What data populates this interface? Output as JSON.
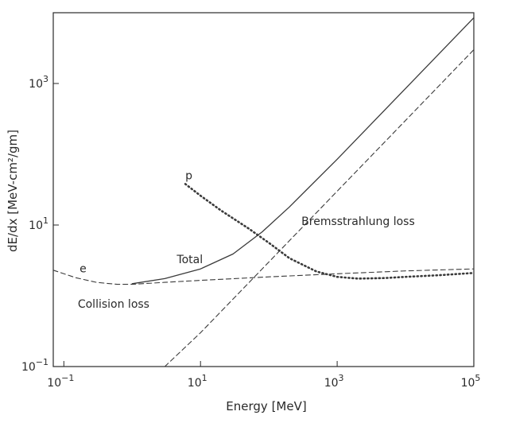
{
  "chart_data": {
    "type": "line",
    "title": "",
    "xlabel": "Energy [MeV]",
    "ylabel": "dE/dx [MeV-cm²/gm]",
    "xscale": "log",
    "yscale": "log",
    "xlim": [
      0.07,
      100000
    ],
    "ylim": [
      0.1,
      10000
    ],
    "x_ticks": [
      {
        "value": 0.1,
        "base": "10",
        "exp": "−1"
      },
      {
        "value": 10,
        "base": "10",
        "exp": "1"
      },
      {
        "value": 1000,
        "base": "10",
        "exp": "3"
      },
      {
        "value": 100000,
        "base": "10",
        "exp": "5"
      }
    ],
    "y_ticks": [
      {
        "value": 0.1,
        "base": "10",
        "exp": "−1"
      },
      {
        "value": 10,
        "base": "10",
        "exp": "1"
      },
      {
        "value": 1000,
        "base": "10",
        "exp": "3"
      }
    ],
    "grid": false,
    "series": [
      {
        "name": "Total",
        "style": "solid",
        "x": [
          1,
          3,
          10,
          30,
          80,
          200,
          1000,
          10000,
          100000
        ],
        "y": [
          1.48,
          1.75,
          2.4,
          3.9,
          8.0,
          18,
          85,
          850,
          8500
        ]
      },
      {
        "name": "e",
        "style": "dashed",
        "x": [
          0.07,
          0.15,
          0.3,
          0.6,
          1,
          3,
          10,
          100,
          1000,
          10000,
          100000
        ],
        "y": [
          2.3,
          1.8,
          1.55,
          1.45,
          1.45,
          1.55,
          1.65,
          1.85,
          2.05,
          2.25,
          2.4
        ]
      },
      {
        "name": "Bremsstrahlung loss",
        "style": "dashed",
        "x": [
          3,
          10,
          100,
          1000,
          10000,
          100000
        ],
        "y": [
          0.08,
          0.3,
          3,
          30,
          300,
          3000
        ]
      },
      {
        "name": "p",
        "style": "dotted",
        "x": [
          6,
          10,
          20,
          50,
          100,
          200,
          500,
          1000,
          2000,
          5000,
          10000,
          30000,
          100000
        ],
        "y": [
          38,
          26,
          16,
          9,
          5.6,
          3.4,
          2.2,
          1.85,
          1.75,
          1.78,
          1.85,
          1.95,
          2.1
        ]
      }
    ],
    "annotations": [
      {
        "text": "p",
        "x": 6,
        "y": 44
      },
      {
        "text": "e",
        "x": 0.17,
        "y": 2.15
      },
      {
        "text": "Total",
        "x": 4.5,
        "y": 2.9
      },
      {
        "text": "Bremsstrahlung loss",
        "x": 300,
        "y": 10
      },
      {
        "text": "Collision loss",
        "x": 0.16,
        "y": 0.68
      }
    ]
  }
}
